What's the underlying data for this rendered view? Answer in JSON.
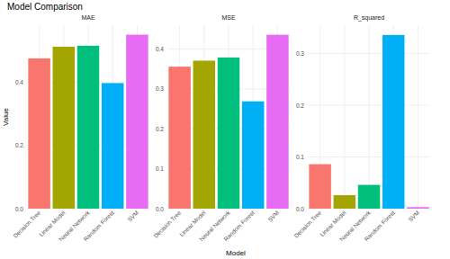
{
  "title": "Model Comparison",
  "x_label": "Model",
  "y_label": "Value",
  "chart_data": [
    {
      "type": "bar",
      "title": "MAE",
      "categories": [
        "Decision Tree",
        "Linear Model",
        "Neural Network",
        "Random Forest",
        "SVM"
      ],
      "values": [
        0.475,
        0.512,
        0.515,
        0.397,
        0.55
      ],
      "colors": [
        "#F8766D",
        "#A3A500",
        "#00BF7D",
        "#00B0F6",
        "#E76BF3"
      ],
      "ylim": [
        0,
        0.58
      ],
      "yticks": [
        {
          "value": 0,
          "label": "0.0"
        },
        0.2,
        0.4
      ],
      "grid": true
    },
    {
      "type": "bar",
      "title": "MSE",
      "categories": [
        "Decision Tree",
        "Linear Model",
        "Neural Network",
        "Random Forest",
        "SVM"
      ],
      "values": [
        0.356,
        0.371,
        0.379,
        0.269,
        0.436
      ],
      "colors": [
        "#F8766D",
        "#A3A500",
        "#00BF7D",
        "#00B0F6",
        "#E76BF3"
      ],
      "ylim": [
        0,
        0.46
      ],
      "yticks": [
        {
          "value": 0,
          "label": "0.0"
        },
        0.1,
        0.2,
        0.3,
        0.4
      ],
      "grid": true
    },
    {
      "type": "bar",
      "title": "R_squared",
      "categories": [
        "Decision Tree",
        "Linear Model",
        "Neural Network",
        "Random Forest",
        "SVM"
      ],
      "values": [
        0.086,
        0.026,
        0.046,
        0.336,
        0.003
      ],
      "colors": [
        "#F8766D",
        "#A3A500",
        "#00BF7D",
        "#00B0F6",
        "#E76BF3"
      ],
      "ylim": [
        0,
        0.355
      ],
      "yticks": [
        {
          "value": 0,
          "label": "0.0"
        },
        0.1,
        0.2,
        0.3
      ],
      "grid": true
    }
  ]
}
